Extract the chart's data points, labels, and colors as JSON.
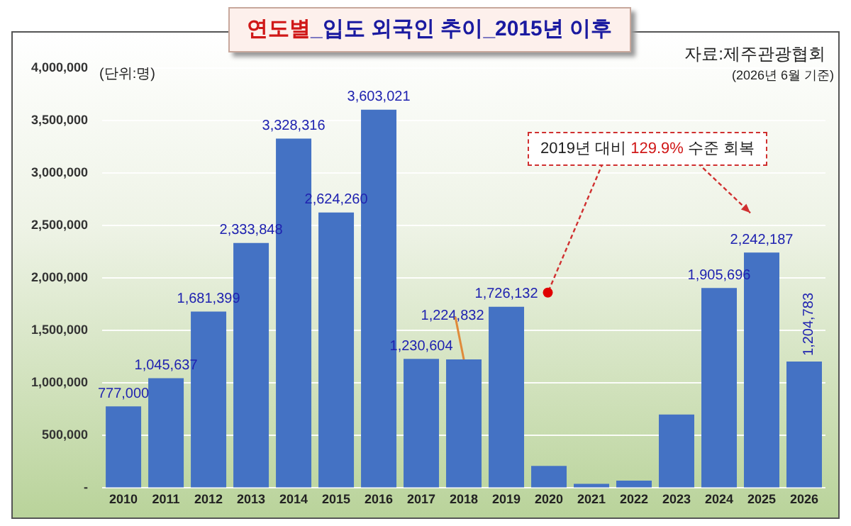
{
  "chart_data": {
    "type": "bar",
    "title": "연도별_입도 외국인 추이_2015년 이후",
    "categories": [
      "2010",
      "2011",
      "2012",
      "2013",
      "2014",
      "2015",
      "2016",
      "2017",
      "2018",
      "2019",
      "2020",
      "2021",
      "2022",
      "2023",
      "2024",
      "2025",
      "2026"
    ],
    "values": [
      777000,
      1045637,
      1681399,
      2333848,
      3328316,
      2624260,
      3603021,
      1230604,
      1224832,
      1726132,
      210000,
      40000,
      70000,
      700000,
      1905696,
      2242187,
      1204783
    ],
    "value_labels": [
      "777,000",
      "1,045,637",
      "1,681,399",
      "2,333,848",
      "3,328,316",
      "2,624,260",
      "3,603,021",
      "1,230,604",
      "1,224,832",
      "1,726,132",
      null,
      null,
      null,
      null,
      "1,905,696",
      "2,242,187",
      "1,204,783"
    ],
    "color": "#4472c4",
    "ylim": [
      0,
      4000000
    ],
    "yticks": [
      {
        "value": 0,
        "label": "-"
      },
      {
        "value": 500000,
        "label": "500,000"
      },
      {
        "value": 1000000,
        "label": "1,000,000"
      },
      {
        "value": 1500000,
        "label": "1,500,000"
      },
      {
        "value": 2000000,
        "label": "2,000,000"
      },
      {
        "value": 2500000,
        "label": "2,500,000"
      },
      {
        "value": 3000000,
        "label": "3,000,000"
      },
      {
        "value": 3500000,
        "label": "3,500,000"
      },
      {
        "value": 4000000,
        "label": "4,000,000"
      }
    ],
    "grid": "y",
    "legend": false,
    "annotations": [
      "자료:제주관광협회",
      "(단위:명)",
      "(2026년 6월 기준)",
      "2019년 대비 129.9% 수준 회복"
    ]
  }
}
